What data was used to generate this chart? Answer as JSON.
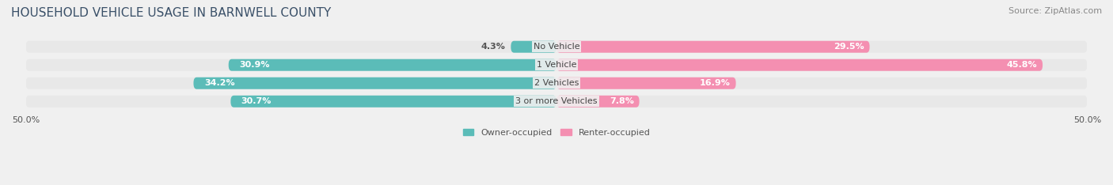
{
  "title": "HOUSEHOLD VEHICLE USAGE IN BARNWELL COUNTY",
  "source": "Source: ZipAtlas.com",
  "categories": [
    "No Vehicle",
    "1 Vehicle",
    "2 Vehicles",
    "3 or more Vehicles"
  ],
  "owner_values": [
    4.3,
    30.9,
    34.2,
    30.7
  ],
  "renter_values": [
    29.5,
    45.8,
    16.9,
    7.8
  ],
  "owner_color": "#5bbcb8",
  "renter_color": "#f48fb1",
  "background_color": "#f0f0f0",
  "bar_background_color": "#e8e8e8",
  "xlim": [
    -50,
    50
  ],
  "xticks": [
    -50,
    50
  ],
  "xticklabels": [
    "50.0%",
    "50.0%"
  ],
  "legend_labels": [
    "Owner-occupied",
    "Renter-occupied"
  ],
  "title_fontsize": 11,
  "source_fontsize": 8,
  "label_fontsize": 8,
  "category_fontsize": 8,
  "bar_height": 0.65
}
